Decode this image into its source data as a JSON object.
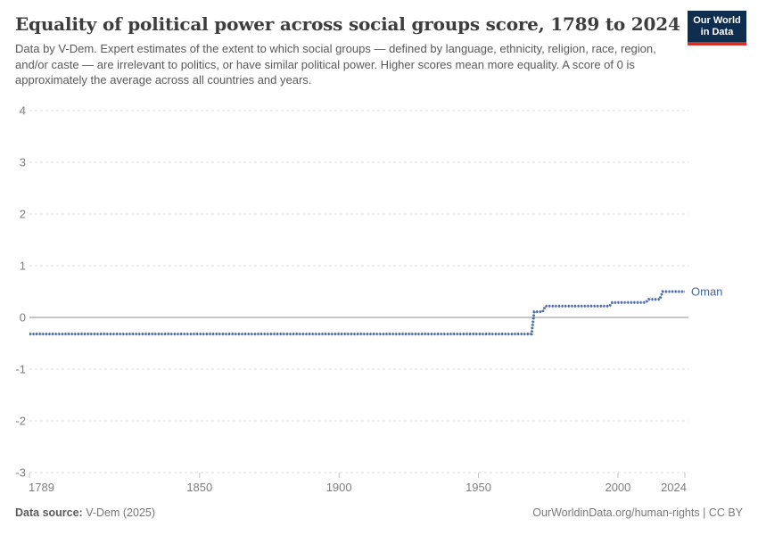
{
  "header": {
    "title": "Equality of political power across social groups score, 1789 to 2024",
    "subtitle": "Data by V-Dem. Expert estimates of the extent to which social groups — defined by language, ethnicity, religion, race, region, and/or caste — are irrelevant to politics, or have similar political power. Higher scores mean more equality. A score of 0 is approximately the average across all countries and years.",
    "logo": {
      "line1": "Our World",
      "line2": "in Data",
      "background_color": "#0f2d4e",
      "accent_color": "#d13328"
    }
  },
  "chart_data": {
    "type": "line",
    "title": "Equality of political power across social groups score, 1789 to 2024",
    "entity": "Oman",
    "line_style": "dotted",
    "legend_position": "end-of-line",
    "grid": true,
    "x": {
      "range": [
        1789,
        2024
      ],
      "ticks": [
        1789,
        1850,
        1900,
        1950,
        2000,
        2024
      ]
    },
    "y": {
      "range": [
        -3,
        4
      ],
      "ticks": [
        4,
        3,
        2,
        1,
        0,
        -1,
        -2,
        -3
      ],
      "zero_line": true
    },
    "series": [
      {
        "name": "Oman",
        "color": "#4767a3",
        "points": [
          [
            1789,
            -0.32
          ],
          [
            1969,
            -0.32
          ],
          [
            1970,
            0.11
          ],
          [
            1973,
            0.11
          ],
          [
            1974,
            0.22
          ],
          [
            1997,
            0.22
          ],
          [
            1998,
            0.29
          ],
          [
            2010,
            0.29
          ],
          [
            2011,
            0.35
          ],
          [
            2015,
            0.35
          ],
          [
            2016,
            0.5
          ],
          [
            2024,
            0.5
          ]
        ]
      }
    ],
    "colors": {
      "gridline": "#dcdcdc",
      "zero_line": "#8c8c8c",
      "tick": "#c4c4c4",
      "axis_label": "#7e7e7e"
    }
  },
  "footer": {
    "source_label": "Data source:",
    "source_value": " V-Dem (2025)",
    "attribution": "OurWorldinData.org/human-rights | CC BY"
  }
}
